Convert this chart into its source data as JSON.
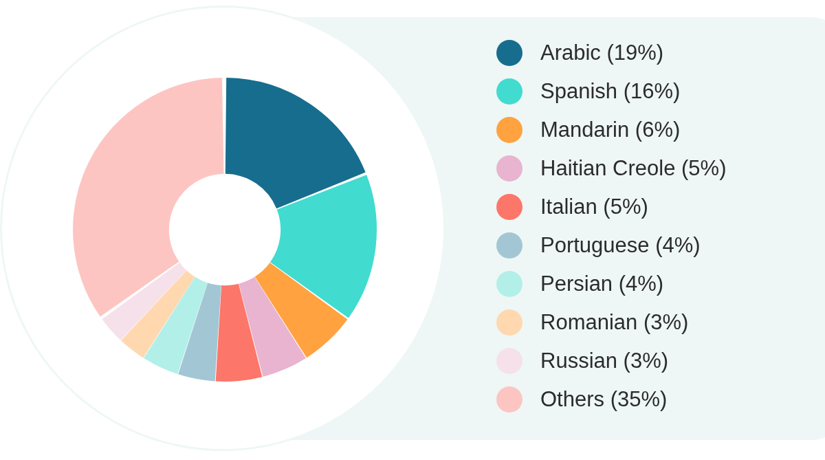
{
  "chart_data": {
    "type": "donut",
    "categories": [
      "Arabic (19%)",
      "Spanish (16%)",
      "Mandarin (6%)",
      "Haitian Creole (5%)",
      "Italian (5%)",
      "Portuguese (4%)",
      "Persian (4%)",
      "Romanian (3%)",
      "Russian (3%)",
      "Others (35%)"
    ],
    "values": [
      19,
      16,
      6,
      5,
      5,
      4,
      4,
      3,
      3,
      35
    ],
    "colors": [
      "#176d8e",
      "#41dbd0",
      "#ffa23f",
      "#e8b4cf",
      "#fc766a",
      "#a2c6d4",
      "#b3efe9",
      "#ffd8b0",
      "#f6e1ea",
      "#fdc5c2"
    ],
    "legend": "right"
  }
}
